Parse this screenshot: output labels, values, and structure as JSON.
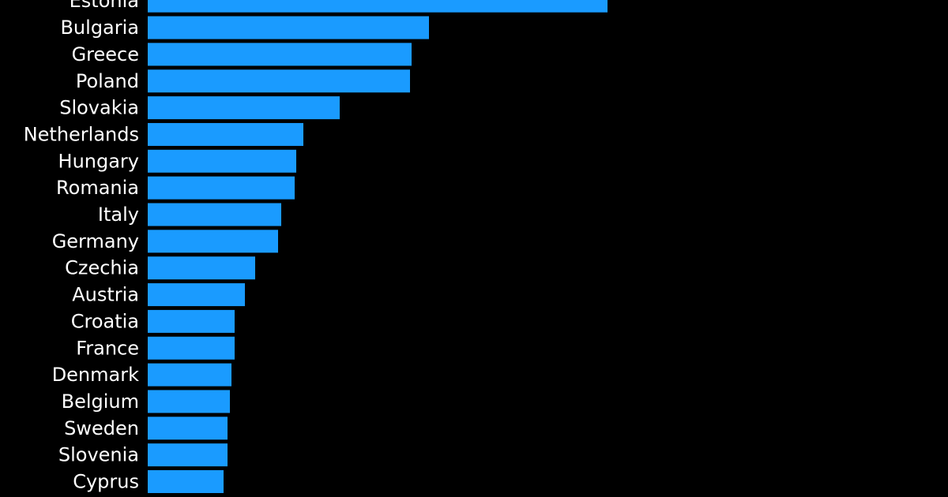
{
  "chart_data": {
    "type": "bar",
    "orientation": "horizontal",
    "categories": [
      "Estonia",
      "Bulgaria",
      "Greece",
      "Poland",
      "Slovakia",
      "Netherlands",
      "Hungary",
      "Romania",
      "Italy",
      "Germany",
      "Czechia",
      "Austria",
      "Croatia",
      "France",
      "Denmark",
      "Belgium",
      "Sweden",
      "Slovenia",
      "Cyprus"
    ],
    "values": [
      582,
      356,
      334,
      332,
      243,
      197,
      188,
      186,
      169,
      165,
      136,
      123,
      110,
      110,
      106,
      104,
      101,
      101,
      96
    ],
    "color": "#1a9bff"
  }
}
